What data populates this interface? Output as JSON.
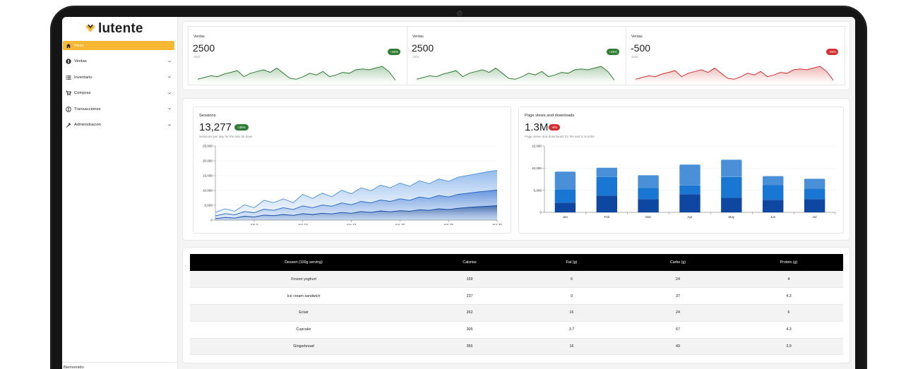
{
  "brand": {
    "name": "lutente"
  },
  "sidebar": {
    "items": [
      {
        "label": "Inicio",
        "icon": "home-icon",
        "active": true,
        "expandable": false
      },
      {
        "label": "Ventas",
        "icon": "dollar-icon",
        "active": false,
        "expandable": true
      },
      {
        "label": "Inventario",
        "icon": "list-icon",
        "active": false,
        "expandable": true
      },
      {
        "label": "Compras",
        "icon": "cart-icon",
        "active": false,
        "expandable": true
      },
      {
        "label": "Transacciones",
        "icon": "exchange-icon",
        "active": false,
        "expandable": true
      },
      {
        "label": "Administracion",
        "icon": "tools-icon",
        "active": false,
        "expandable": true
      }
    ],
    "footer": "Bienvenido"
  },
  "kpis": [
    {
      "title": "Ventas",
      "value": "2500",
      "sub": "Abril",
      "badge": "+25%",
      "trend": "up",
      "color": "#2e7d32",
      "spark": [
        3,
        5,
        7,
        6,
        9,
        11,
        13,
        6,
        10,
        12,
        14,
        11,
        16,
        10,
        4,
        3,
        6,
        10,
        8,
        12,
        6,
        8,
        11,
        10,
        14,
        15,
        14,
        16,
        18,
        12,
        2
      ]
    },
    {
      "title": "Ventas",
      "value": "2500",
      "sub": "Abril",
      "badge": "+25%",
      "trend": "up",
      "color": "#2e7d32",
      "spark": [
        3,
        5,
        7,
        6,
        9,
        11,
        13,
        6,
        10,
        12,
        14,
        11,
        16,
        10,
        4,
        3,
        6,
        10,
        8,
        12,
        6,
        8,
        11,
        10,
        14,
        15,
        14,
        16,
        18,
        12,
        2
      ]
    },
    {
      "title": "Ventas",
      "value": "-500",
      "sub": "June",
      "badge": "-25%",
      "trend": "down",
      "color": "#d32f2f",
      "spark": [
        3,
        5,
        7,
        6,
        9,
        11,
        13,
        6,
        10,
        12,
        14,
        11,
        16,
        10,
        4,
        3,
        6,
        10,
        8,
        12,
        6,
        8,
        11,
        10,
        14,
        15,
        14,
        16,
        18,
        12,
        2
      ]
    }
  ],
  "sessions": {
    "title": "Sessions",
    "value": "13,277",
    "badge": "+35%",
    "subtitle": "Sessions per day for the last 30 days"
  },
  "pageviews": {
    "title": "Page views and downloads",
    "value": "1.3M",
    "badge": "-8%",
    "subtitle": "Page views and downloads for the last 6 months"
  },
  "colors": {
    "accent": "#f7b733",
    "up": "#2e7d32",
    "down": "#d32f2f",
    "blue1": "#0d47a1",
    "blue2": "#1976d2",
    "blue3": "#4a90d9"
  },
  "chart_data": [
    {
      "type": "area",
      "title": "Sessions",
      "x": [
        "Apr 1",
        "Apr 2",
        "Apr 3",
        "Apr 4",
        "Apr 5",
        "Apr 6",
        "Apr 7",
        "Apr 8",
        "Apr 9",
        "Apr 10",
        "Apr 11",
        "Apr 12",
        "Apr 13",
        "Apr 14",
        "Apr 15",
        "Apr 16",
        "Apr 17",
        "Apr 18",
        "Apr 19",
        "Apr 20",
        "Apr 21",
        "Apr 22",
        "Apr 23",
        "Apr 24",
        "Apr 25",
        "Apr 26",
        "Apr 27",
        "Apr 28",
        "Apr 29",
        "Apr 30"
      ],
      "x_ticks": [
        "Apr 5",
        "Apr 10",
        "Apr 15",
        "Apr 20",
        "Apr 25",
        "Apr 30"
      ],
      "y_ticks": [
        "0",
        "5,000",
        "10,000",
        "15,000",
        "20,000",
        "25,000"
      ],
      "ylim": [
        0,
        25000
      ],
      "stacked": true,
      "series": [
        {
          "values": [
            500,
            900,
            700,
            1300,
            1100,
            1700,
            1500,
            1900,
            1600,
            2200,
            1900,
            2300,
            2100,
            2600,
            2300,
            2900,
            2600,
            3100,
            2800,
            3200,
            3000,
            3500,
            3300,
            3800,
            3600,
            4000,
            4300,
            4500,
            4700,
            4900
          ]
        },
        {
          "values": [
            900,
            1300,
            1100,
            1600,
            1400,
            2000,
            1800,
            2300,
            2000,
            2600,
            2300,
            2800,
            2600,
            3200,
            2900,
            3400,
            3200,
            3700,
            3500,
            4000,
            3700,
            4300,
            4000,
            4500,
            4200,
            4700,
            4800,
            5000,
            5100,
            5300
          ]
        },
        {
          "values": [
            1200,
            1600,
            1200,
            2300,
            1700,
            3000,
            2600,
            3000,
            2300,
            3900,
            3100,
            4000,
            3200,
            4300,
            3700,
            4600,
            4100,
            5000,
            4600,
            5300,
            4700,
            5500,
            5000,
            5600,
            5300,
            5800,
            6000,
            6200,
            6500,
            6600
          ]
        }
      ]
    },
    {
      "type": "bar",
      "title": "Page views and downloads",
      "categories": [
        "Jan",
        "Feb",
        "Mar",
        "Apr",
        "May",
        "Jun",
        "Jul"
      ],
      "y_ticks": [
        "0",
        "5,000",
        "10,000",
        "15,000"
      ],
      "ylim": [
        0,
        15000
      ],
      "stacked": true,
      "series": [
        {
          "values": [
            2200,
            3800,
            3000,
            4100,
            3300,
            2800,
            3000
          ]
        },
        {
          "values": [
            3000,
            4200,
            2500,
            2000,
            4700,
            3400,
            2400
          ]
        },
        {
          "values": [
            4000,
            2100,
            2900,
            4700,
            3900,
            2000,
            2200
          ]
        }
      ]
    }
  ],
  "table": {
    "headers": [
      "Dessert (100g serving)",
      "Calories",
      "Fat (g)",
      "Carbs (g)",
      "Protein (g)"
    ],
    "rows": [
      [
        "Frozen yoghurt",
        "159",
        "6",
        "24",
        "4"
      ],
      [
        "Ice cream sandwich",
        "237",
        "9",
        "37",
        "4.3"
      ],
      [
        "Eclair",
        "262",
        "16",
        "24",
        "6"
      ],
      [
        "Cupcake",
        "305",
        "3.7",
        "67",
        "4.3"
      ],
      [
        "Gingerbread",
        "356",
        "16",
        "49",
        "3.9"
      ]
    ]
  }
}
